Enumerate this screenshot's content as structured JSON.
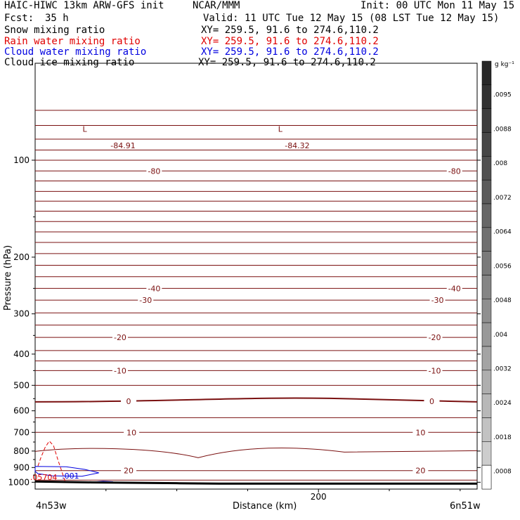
{
  "header": {
    "model": "HAIC-HIWC 13km ARW-GFS init",
    "org": "NCAR/MMM",
    "init": "Init: 00 UTC Mon 11 May 15",
    "fcst_label": "Fcst:",
    "fcst_value": "35 h",
    "valid": "Valid: 11 UTC Tue 12 May 15 (08 LST Tue 12 May 15)"
  },
  "fields": [
    {
      "name": "Snow mixing ratio",
      "xy": "XY= 259.5, 91.6 to 274.6,110.2",
      "color": "#000000"
    },
    {
      "name": "Rain water mixing ratio",
      "xy": "XY= 259.5, 91.6 to 274.6,110.2",
      "color": "#e00000"
    },
    {
      "name": "Cloud water mixing ratio",
      "xy": "XY= 259.5, 91.6 to 274.6,110.2",
      "color": "#0000e0"
    },
    {
      "name": "Cloud ice mixing ratio",
      "xy": "XY= 259.5, 91.6 to 274.6,110.2",
      "color": "#000000"
    }
  ],
  "colorbar": {
    "unit": "g kg⁻¹",
    "labels": [
      ".0095",
      ".0088",
      ".008",
      ".0072",
      ".0064",
      ".0056",
      ".0048",
      ".004",
      ".0032",
      ".0024",
      ".0018",
      ".0008"
    ]
  },
  "chart_data": {
    "type": "line",
    "title": "",
    "xlabel": "Distance (km)",
    "ylabel": "Pressure (hPa)",
    "xlim": [
      0,
      312
    ],
    "ylim_pressure": [
      1050,
      50
    ],
    "log_pressure_axis": true,
    "x_ticks": [
      {
        "value": 200,
        "label": "200"
      }
    ],
    "x_endpoints": {
      "left": "4n53w",
      "right": "6n51w"
    },
    "y_ticks": [
      100,
      200,
      300,
      400,
      500,
      600,
      700,
      800,
      900,
      1000
    ],
    "temperature_contour_color": "#7a1010",
    "temperature_contours": [
      {
        "p": 70
      },
      {
        "p": 78
      },
      {
        "p": 86
      },
      {
        "p": 93
      },
      {
        "p": 100
      },
      {
        "p": 108,
        "label": "-80",
        "label_x": [
          84,
          296
        ]
      },
      {
        "p": 116
      },
      {
        "p": 125
      },
      {
        "p": 134
      },
      {
        "p": 144
      },
      {
        "p": 155
      },
      {
        "p": 167
      },
      {
        "p": 180
      },
      {
        "p": 195
      },
      {
        "p": 212
      },
      {
        "p": 230
      },
      {
        "p": 250,
        "label": "-40",
        "label_x": [
          84,
          296
        ]
      },
      {
        "p": 272,
        "label": "-30",
        "label_x": [
          78,
          284
        ]
      },
      {
        "p": 298
      },
      {
        "p": 325
      },
      {
        "p": 355,
        "label": "-20",
        "label_x": [
          60,
          282
        ]
      },
      {
        "p": 390
      },
      {
        "p": 420
      },
      {
        "p": 450,
        "label": "-10",
        "label_x": [
          60,
          282
        ]
      },
      {
        "p": 500
      },
      {
        "p": 560,
        "label": "0",
        "label_x": [
          66,
          280
        ],
        "bold": true
      },
      {
        "p": 630
      },
      {
        "p": 700,
        "label": "10",
        "label_x": [
          68,
          272
        ]
      },
      {
        "p": 790
      },
      {
        "p": 920,
        "label": "20",
        "label_x": [
          66,
          272
        ]
      },
      {
        "p": 985
      }
    ],
    "annotations": [
      {
        "text": "L",
        "x": 35,
        "p": 80
      },
      {
        "text": "-84.91",
        "x": 62,
        "p": 90
      },
      {
        "text": "L",
        "x": 173,
        "p": 80
      },
      {
        "text": "-84.32",
        "x": 185,
        "p": 90
      },
      {
        "text": ".05704",
        "x": 6,
        "p": 965,
        "color": "#e00000"
      },
      {
        "text": ".001",
        "x": 25,
        "p": 955,
        "color": "#0000e0"
      }
    ],
    "series": [
      {
        "name": "Rain water mixing ratio",
        "color": "#e00000",
        "dashed": true,
        "x": [
          2,
          4,
          7,
          10,
          13,
          16,
          19,
          21
        ],
        "p": [
          890,
          840,
          780,
          745,
          770,
          850,
          930,
          990
        ]
      },
      {
        "name": "Cloud water mixing ratio",
        "color": "#0000e0",
        "x": [
          0,
          22,
          35,
          45,
          33,
          12,
          2,
          0
        ],
        "p": [
          893,
          895,
          912,
          935,
          958,
          955,
          940,
          925
        ]
      },
      {
        "name": "Terrain",
        "color": "#000000",
        "x": [
          0,
          40,
          100,
          130,
          200,
          260,
          312
        ],
        "p": [
          995,
          1001,
          1007,
          1010,
          1010,
          1010,
          1010
        ]
      }
    ]
  }
}
